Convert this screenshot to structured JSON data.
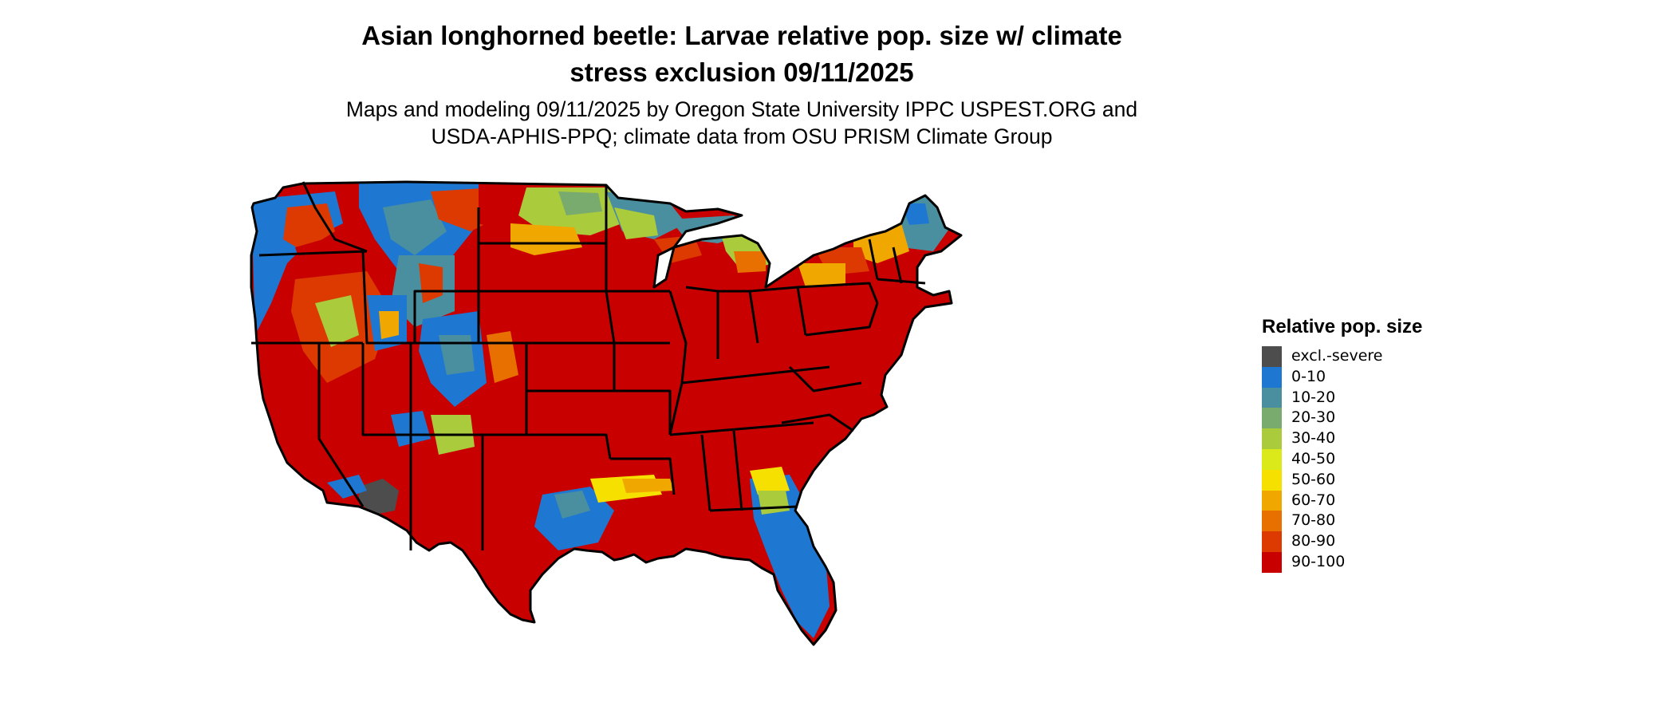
{
  "title_line1": "Asian longhorned beetle: Larvae relative pop. size w/ climate",
  "title_line2": "stress exclusion 09/11/2025",
  "subtitle_line1": "Maps and modeling 09/11/2025 by Oregon State University IPPC USPEST.ORG and",
  "subtitle_line2": "USDA-APHIS-PPQ; climate data from OSU PRISM Climate Group",
  "legend": {
    "title": "Relative pop. size",
    "items": [
      {
        "label": "excl.-severe",
        "color": "#4d4d4d"
      },
      {
        "label": "0-10",
        "color": "#1e78d2"
      },
      {
        "label": "10-20",
        "color": "#4a8fa0"
      },
      {
        "label": "20-30",
        "color": "#7aab6e"
      },
      {
        "label": "30-40",
        "color": "#aacb3c"
      },
      {
        "label": "40-50",
        "color": "#dbe81a"
      },
      {
        "label": "50-60",
        "color": "#f5e000"
      },
      {
        "label": "60-70",
        "color": "#f0a800"
      },
      {
        "label": "70-80",
        "color": "#e87000"
      },
      {
        "label": "80-90",
        "color": "#dc3a00"
      },
      {
        "label": "90-100",
        "color": "#c80000"
      }
    ]
  }
}
